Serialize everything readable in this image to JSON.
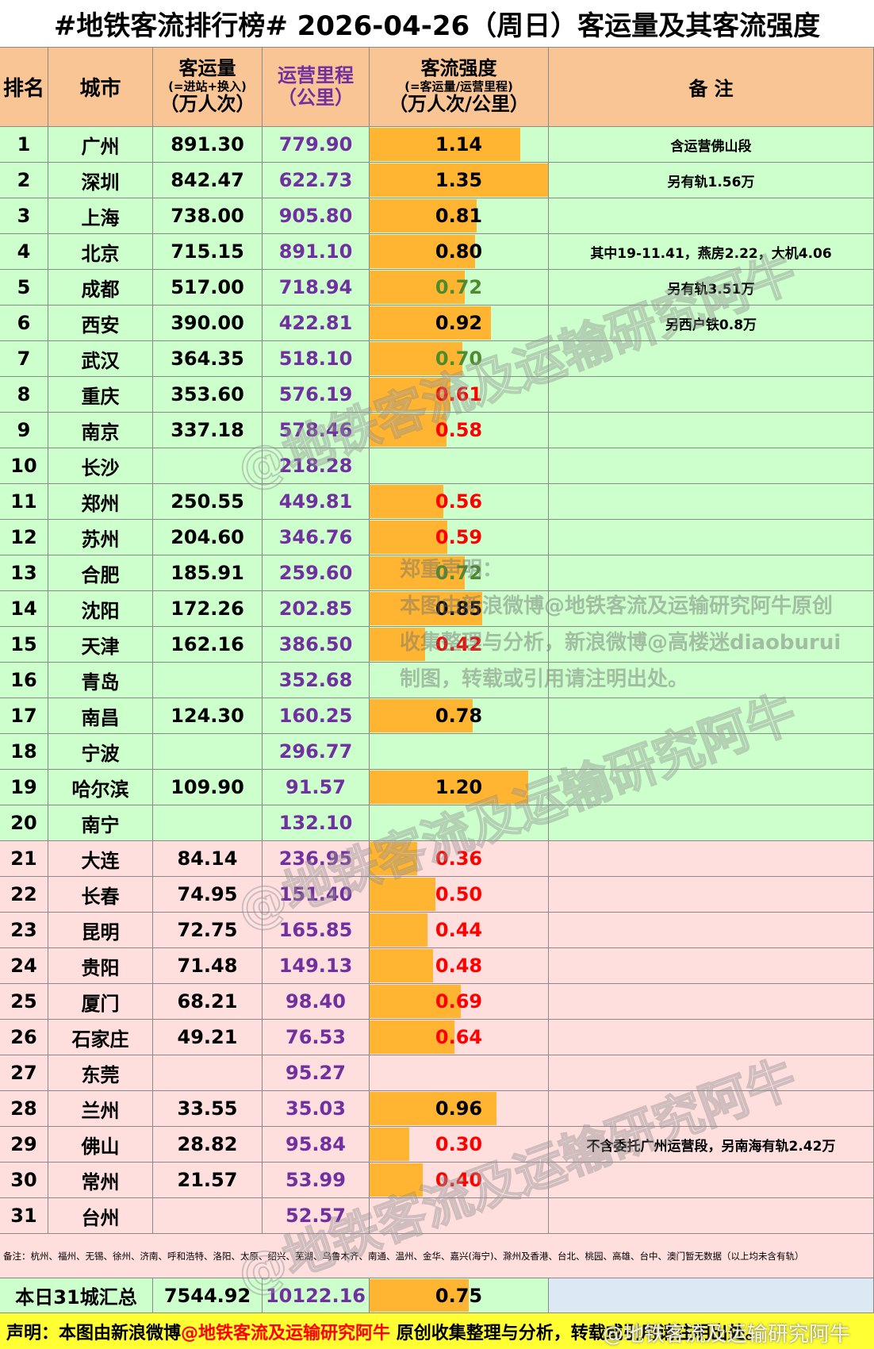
{
  "title": "#地铁客流排行榜# 2026-04-26（周日）客运量及其客流强度",
  "header": {
    "rank": "排名",
    "city": "城市",
    "volume": [
      "客运量",
      "(=进站+换入)",
      "（万人次）"
    ],
    "mileage": [
      "运营里程",
      "（公里）"
    ],
    "intensity": [
      "客流强度",
      "(=客运量/运营里程)",
      "（万人次/公里）"
    ],
    "note": "备 注"
  },
  "header_color": "#fac594",
  "mileage_color": "#7030a0",
  "bar_color": "#ffb531",
  "groups": [
    {
      "color": "#ccffcc",
      "rows": [
        {
          "rank": 1,
          "city": "广州",
          "volume": "891.30",
          "mileage": "779.90",
          "intensity": "1.14",
          "intensity_color": "#000000",
          "note": "含运营佛山段"
        },
        {
          "rank": 2,
          "city": "深圳",
          "volume": "842.47",
          "mileage": "622.73",
          "intensity": "1.35",
          "intensity_color": "#000000",
          "note": "另有轨1.56万"
        },
        {
          "rank": 3,
          "city": "上海",
          "volume": "738.00",
          "mileage": "905.80",
          "intensity": "0.81",
          "intensity_color": "#000000"
        },
        {
          "rank": 4,
          "city": "北京",
          "volume": "715.15",
          "mileage": "891.10",
          "intensity": "0.80",
          "intensity_color": "#000000",
          "note": "其中19-11.41，燕房2.22，大机4.06"
        },
        {
          "rank": 5,
          "city": "成都",
          "volume": "517.00",
          "mileage": "718.94",
          "intensity": "0.72",
          "intensity_color": "#4e8a2e",
          "note": "另有轨3.51万"
        },
        {
          "rank": 6,
          "city": "西安",
          "volume": "390.00",
          "mileage": "422.81",
          "intensity": "0.92",
          "intensity_color": "#000000",
          "note": "另西户铁0.8万"
        },
        {
          "rank": 7,
          "city": "武汉",
          "volume": "364.35",
          "mileage": "518.10",
          "intensity": "0.70",
          "intensity_color": "#4e8a2e"
        },
        {
          "rank": 8,
          "city": "重庆",
          "volume": "353.60",
          "mileage": "576.19",
          "intensity": "0.61",
          "intensity_color": "#ff0000"
        },
        {
          "rank": 9,
          "city": "南京",
          "volume": "337.18",
          "mileage": "578.46",
          "intensity": "0.58",
          "intensity_color": "#ff0000"
        },
        {
          "rank": 10,
          "city": "长沙",
          "mileage": "218.28"
        },
        {
          "rank": 11,
          "city": "郑州",
          "volume": "250.55",
          "mileage": "449.81",
          "intensity": "0.56",
          "intensity_color": "#ff0000"
        },
        {
          "rank": 12,
          "city": "苏州",
          "volume": "204.60",
          "mileage": "346.76",
          "intensity": "0.59",
          "intensity_color": "#ff0000"
        },
        {
          "rank": 13,
          "city": "合肥",
          "volume": "185.91",
          "mileage": "259.60",
          "intensity": "0.72",
          "intensity_color": "#4e8a2e"
        },
        {
          "rank": 14,
          "city": "沈阳",
          "volume": "172.26",
          "mileage": "202.85",
          "intensity": "0.85",
          "intensity_color": "#000000"
        },
        {
          "rank": 15,
          "city": "天津",
          "volume": "162.16",
          "mileage": "386.50",
          "intensity": "0.42",
          "intensity_color": "#ff0000"
        },
        {
          "rank": 16,
          "city": "青岛",
          "mileage": "352.68"
        },
        {
          "rank": 17,
          "city": "南昌",
          "volume": "124.30",
          "mileage": "160.25",
          "intensity": "0.78",
          "intensity_color": "#000000"
        },
        {
          "rank": 18,
          "city": "宁波",
          "mileage": "296.77"
        },
        {
          "rank": 19,
          "city": "哈尔滨",
          "volume": "109.90",
          "mileage": "91.57",
          "intensity": "1.20",
          "intensity_color": "#000000"
        },
        {
          "rank": 20,
          "city": "南宁",
          "mileage": "132.10"
        }
      ]
    },
    {
      "color": "#ffdede",
      "rows": [
        {
          "rank": 21,
          "city": "大连",
          "volume": "84.14",
          "mileage": "236.95",
          "intensity": "0.36",
          "intensity_color": "#ff0000"
        },
        {
          "rank": 22,
          "city": "长春",
          "volume": "74.95",
          "mileage": "151.40",
          "intensity": "0.50",
          "intensity_color": "#ff0000"
        },
        {
          "rank": 23,
          "city": "昆明",
          "volume": "72.75",
          "mileage": "165.85",
          "intensity": "0.44",
          "intensity_color": "#ff0000"
        },
        {
          "rank": 24,
          "city": "贵阳",
          "volume": "71.48",
          "mileage": "149.13",
          "intensity": "0.48",
          "intensity_color": "#ff0000"
        },
        {
          "rank": 25,
          "city": "厦门",
          "volume": "68.21",
          "mileage": "98.40",
          "intensity": "0.69",
          "intensity_color": "#ff0000"
        },
        {
          "rank": 26,
          "city": "石家庄",
          "volume": "49.21",
          "mileage": "76.53",
          "intensity": "0.64",
          "intensity_color": "#ff0000"
        },
        {
          "rank": 27,
          "city": "东莞",
          "mileage": "95.27"
        },
        {
          "rank": 28,
          "city": "兰州",
          "volume": "33.55",
          "mileage": "35.03",
          "intensity": "0.96",
          "intensity_color": "#000000"
        },
        {
          "rank": 29,
          "city": "佛山",
          "volume": "28.82",
          "mileage": "95.84",
          "intensity": "0.30",
          "intensity_color": "#ff0000",
          "note": "不含委托广州运营段，另南海有轨2.42万"
        },
        {
          "rank": 30,
          "city": "常州",
          "volume": "21.57",
          "mileage": "53.99",
          "intensity": "0.40",
          "intensity_color": "#ff0000"
        },
        {
          "rank": 31,
          "city": "台州",
          "mileage": "52.57"
        }
      ]
    }
  ],
  "remark": "备注：杭州、福州、无锡、徐州、济南、呼和浩特、洛阳、太原、绍兴、芜湖、乌鲁木齐、南通、温州、金华、嘉兴(海宁)、滁州及香港、台北、桃园、高雄、台中、澳门暂无数据（以上均未含有轨）",
  "total": {
    "label": "本日31城汇总",
    "volume": "7544.92",
    "mileage": "10122.16",
    "intensity": "0.75",
    "color": "#ccffcc",
    "note_color": "#dde8f5"
  },
  "footer": {
    "parts": [
      "声明：本图由新浪微博",
      "@地铁客流及运输研究阿牛",
      " 原创收集整理与分析，转载或引用请注明出处。"
    ],
    "color": "#ffff33"
  },
  "statement": {
    "title": "郑重声明：",
    "lines": [
      "本图由新浪微博@地铁客流及运输研究阿牛原创",
      "收集整理与分析，新浪微博@高楼迷diaoburui",
      "制图，转载或引用请注明出处。"
    ]
  },
  "watermarks": [
    "@地铁客流及运输研究阿牛",
    "@地铁客流及运输研究阿牛",
    "@地铁客流及运输研究阿牛"
  ],
  "weibo_tag": "@地铁客流及运输研究阿牛"
}
